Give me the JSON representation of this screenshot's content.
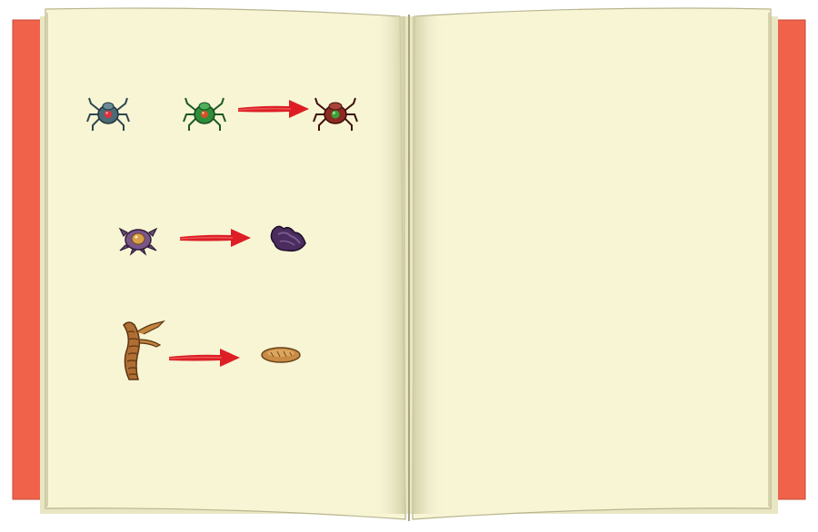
{
  "book": {
    "cover_color": "#f0624a",
    "page_color": "#f7f5d4",
    "shade_color": "#cdcaa3",
    "edge_color": "#ffffff"
  },
  "left_page": {
    "rows": [
      {
        "items": [
          "blue-spider-icon",
          "green-spider-icon",
          "red-arrow-icon",
          "red-spider-icon"
        ]
      },
      {
        "items": [
          "purple-crab-icon",
          "red-arrow-icon",
          "purple-shell-icon"
        ]
      },
      {
        "items": [
          "brown-worm-icon",
          "red-arrow-icon",
          "bread-loaf-icon"
        ]
      }
    ]
  },
  "right_page": {
    "items": []
  },
  "colors": {
    "arrow": "#dd1e25",
    "blue_spider": "#4d6a76",
    "green_spider": "#2f8d3a",
    "red_spider": "#8c2a22",
    "purple_crab": "#6b4a78",
    "purple_shell": "#4a2d5e",
    "worm": "#b06e34",
    "bread": "#c88c46"
  }
}
